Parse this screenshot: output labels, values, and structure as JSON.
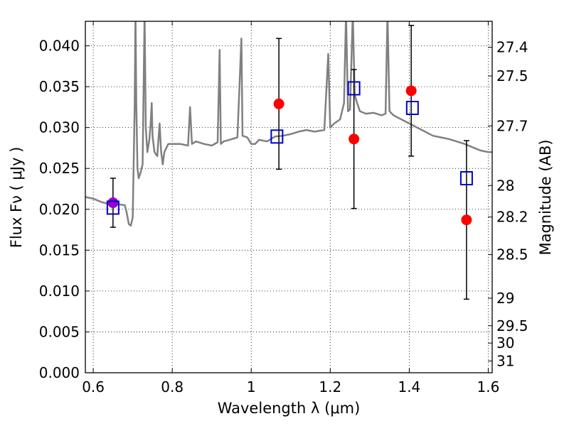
{
  "chart_data": {
    "type": "scatter",
    "title": "",
    "xlabel": "Wavelength  λ (μm)",
    "ylabel": "Flux  Fν  ( μJy )",
    "y2label": "Magnitude (AB)",
    "xlim": [
      0.58,
      1.61
    ],
    "ylim": [
      0.0,
      0.043
    ],
    "grid": true,
    "x_ticks": [
      0.6,
      0.8,
      1.0,
      1.2,
      1.4,
      1.6
    ],
    "x_tick_labels": [
      "0.6",
      "0.8",
      "1",
      "1.2",
      "1.4",
      "1.6"
    ],
    "y_ticks": [
      0.0,
      0.005,
      0.01,
      0.015,
      0.02,
      0.025,
      0.03,
      0.035,
      0.04
    ],
    "y_tick_labels": [
      "0.000",
      "0.005",
      "0.010",
      "0.015",
      "0.020",
      "0.025",
      "0.030",
      "0.035",
      "0.040"
    ],
    "magnitude_ticks": [
      "27.4",
      "27.5",
      "27.7",
      "28",
      "28.2",
      "28.5",
      "29",
      "29.5",
      "30",
      "31"
    ],
    "colors": {
      "spectrum": "#808080",
      "observed": "#ff0000",
      "model": "#0000cc",
      "errorbar": "#000000",
      "overlap": "#9900cc"
    },
    "series": [
      {
        "kind": "line",
        "points": [
          [
            0.58,
            0.0215
          ],
          [
            0.6,
            0.0213
          ],
          [
            0.62,
            0.0209
          ],
          [
            0.635,
            0.0207
          ],
          [
            0.65,
            0.0207
          ],
          [
            0.665,
            0.0206
          ],
          [
            0.68,
            0.0205
          ],
          [
            0.685,
            0.0195
          ],
          [
            0.69,
            0.0182
          ],
          [
            0.695,
            0.018
          ],
          [
            0.7,
            0.019
          ],
          [
            0.705,
            0.033
          ],
          [
            0.707,
            0.044
          ],
          [
            0.709,
            0.033
          ],
          [
            0.712,
            0.025
          ],
          [
            0.715,
            0.0238
          ],
          [
            0.72,
            0.0245
          ],
          [
            0.725,
            0.0255
          ],
          [
            0.73,
            0.044
          ],
          [
            0.733,
            0.03
          ],
          [
            0.737,
            0.027
          ],
          [
            0.742,
            0.0285
          ],
          [
            0.746,
            0.031
          ],
          [
            0.748,
            0.033
          ],
          [
            0.75,
            0.029
          ],
          [
            0.755,
            0.027
          ],
          [
            0.762,
            0.0265
          ],
          [
            0.768,
            0.0305
          ],
          [
            0.772,
            0.027
          ],
          [
            0.776,
            0.0255
          ],
          [
            0.78,
            0.027
          ],
          [
            0.79,
            0.028
          ],
          [
            0.8,
            0.028
          ],
          [
            0.82,
            0.028
          ],
          [
            0.84,
            0.0278
          ],
          [
            0.845,
            0.0325
          ],
          [
            0.85,
            0.028
          ],
          [
            0.86,
            0.0283
          ],
          [
            0.88,
            0.028
          ],
          [
            0.9,
            0.0278
          ],
          [
            0.915,
            0.0282
          ],
          [
            0.92,
            0.0395
          ],
          [
            0.923,
            0.028
          ],
          [
            0.93,
            0.0283
          ],
          [
            0.945,
            0.0285
          ],
          [
            0.965,
            0.0288
          ],
          [
            0.975,
            0.0409
          ],
          [
            0.978,
            0.029
          ],
          [
            0.99,
            0.0288
          ],
          [
            1.0,
            0.028
          ],
          [
            1.01,
            0.028
          ],
          [
            1.02,
            0.0285
          ],
          [
            1.04,
            0.0283
          ],
          [
            1.06,
            0.0289
          ],
          [
            1.08,
            0.029
          ],
          [
            1.1,
            0.0292
          ],
          [
            1.12,
            0.0295
          ],
          [
            1.14,
            0.0297
          ],
          [
            1.16,
            0.0295
          ],
          [
            1.185,
            0.0297
          ],
          [
            1.195,
            0.039
          ],
          [
            1.2,
            0.03
          ],
          [
            1.21,
            0.0305
          ],
          [
            1.225,
            0.031
          ],
          [
            1.235,
            0.033
          ],
          [
            1.24,
            0.044
          ],
          [
            1.245,
            0.032
          ],
          [
            1.25,
            0.0322
          ],
          [
            1.257,
            0.044
          ],
          [
            1.262,
            0.034
          ],
          [
            1.268,
            0.033
          ],
          [
            1.275,
            0.032
          ],
          [
            1.29,
            0.0317
          ],
          [
            1.31,
            0.0318
          ],
          [
            1.33,
            0.0315
          ],
          [
            1.34,
            0.0317
          ],
          [
            1.345,
            0.044
          ],
          [
            1.35,
            0.032
          ],
          [
            1.36,
            0.0315
          ],
          [
            1.38,
            0.031
          ],
          [
            1.4,
            0.0305
          ],
          [
            1.42,
            0.03
          ],
          [
            1.44,
            0.0295
          ],
          [
            1.46,
            0.029
          ],
          [
            1.48,
            0.0288
          ],
          [
            1.5,
            0.0286
          ],
          [
            1.52,
            0.0283
          ],
          [
            1.54,
            0.028
          ],
          [
            1.56,
            0.0276
          ],
          [
            1.58,
            0.0272
          ],
          [
            1.6,
            0.027
          ],
          [
            1.61,
            0.027
          ]
        ]
      },
      {
        "kind": "observed",
        "points": [
          {
            "x": 0.65,
            "y": 0.0208,
            "err": 0.003
          },
          {
            "x": 1.07,
            "y": 0.0329,
            "err": 0.008
          },
          {
            "x": 1.26,
            "y": 0.0286,
            "err": 0.0085
          },
          {
            "x": 1.405,
            "y": 0.0345,
            "err": 0.008
          },
          {
            "x": 1.545,
            "y": 0.0187,
            "err": 0.0097
          }
        ]
      },
      {
        "kind": "model",
        "points": [
          {
            "x": 0.65,
            "y": 0.0202
          },
          {
            "x": 1.065,
            "y": 0.0289
          },
          {
            "x": 1.26,
            "y": 0.0348
          },
          {
            "x": 1.408,
            "y": 0.0324
          },
          {
            "x": 1.545,
            "y": 0.0238
          }
        ]
      }
    ]
  }
}
